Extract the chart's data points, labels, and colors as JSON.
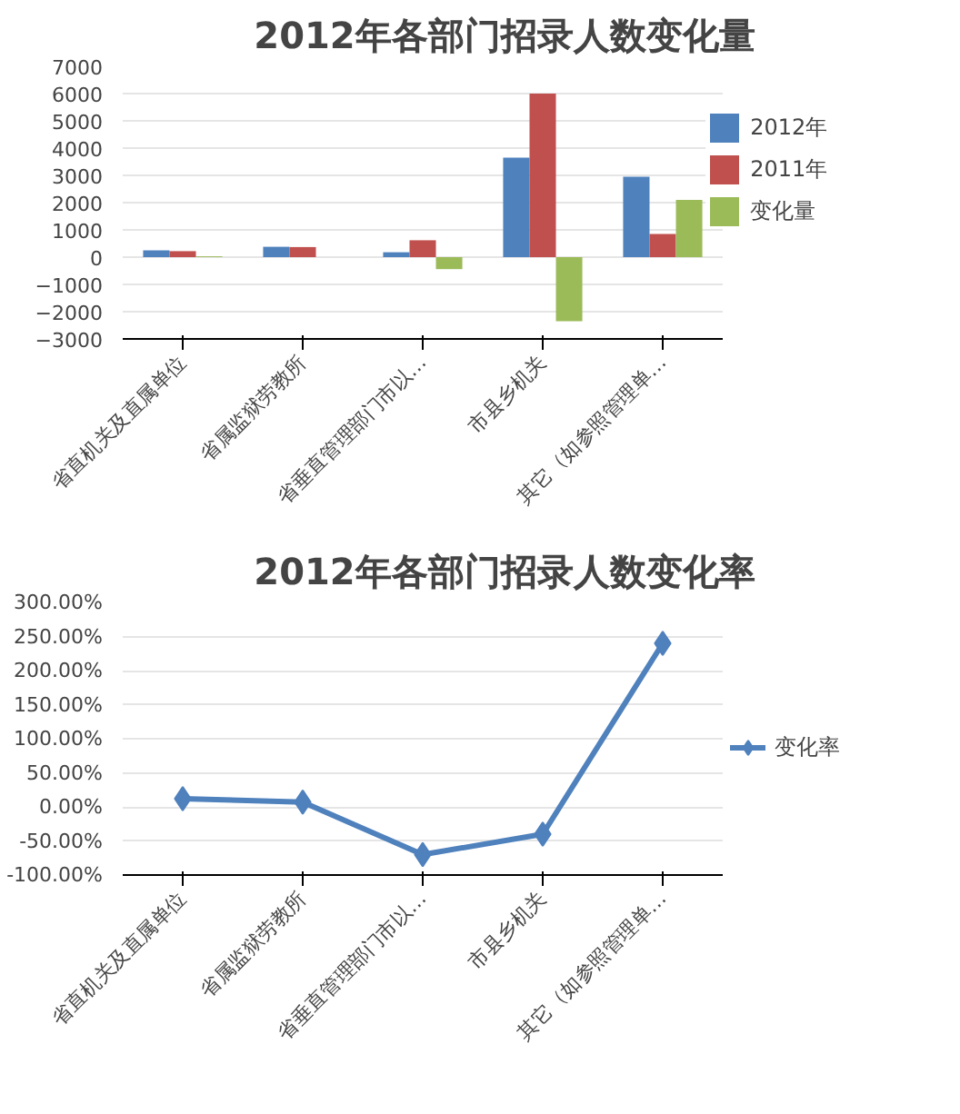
{
  "chart_data": [
    {
      "type": "bar",
      "title": "2012年各部门招录人数变化量",
      "categories": [
        "省直机关及直属单位",
        "省属监狱劳教所",
        "省垂直管理部门市以…",
        "市县乡机关",
        "其它（如参照管理单…"
      ],
      "series": [
        {
          "name": "2012年",
          "color": "#4f81bd",
          "values": [
            250,
            380,
            180,
            3650,
            2950
          ]
        },
        {
          "name": "2011年",
          "color": "#c0504d",
          "values": [
            220,
            370,
            620,
            6000,
            850
          ]
        },
        {
          "name": "变化量",
          "color": "#9bbb59",
          "values": [
            30,
            null,
            -440,
            -2350,
            2100
          ]
        }
      ],
      "ylim": [
        -3000,
        7000
      ],
      "yticks": [
        -3000,
        -2000,
        -1000,
        0,
        1000,
        2000,
        3000,
        4000,
        5000,
        6000,
        7000
      ],
      "grid": "y",
      "legend": "right"
    },
    {
      "type": "line",
      "title": "2012年各部门招录人数变化率",
      "categories": [
        "省直机关及直属单位",
        "省属监狱劳教所",
        "省垂直管理部门市以…",
        "市县乡机关",
        "其它（如参照管理单…"
      ],
      "series": [
        {
          "name": "变化率",
          "color": "#4f81bd",
          "values": [
            12,
            7,
            -70,
            -40,
            240
          ]
        }
      ],
      "ylim": [
        -100,
        300
      ],
      "yticks": [
        {
          "value": -100,
          "label": "-100.00%"
        },
        {
          "value": -50,
          "label": "-50.00%"
        },
        {
          "value": 0,
          "label": "0.00%"
        },
        {
          "value": 50,
          "label": "50.00%"
        },
        {
          "value": 100,
          "label": "100.00%"
        },
        {
          "value": 150,
          "label": "150.00%"
        },
        {
          "value": 200,
          "label": "200.00%"
        },
        {
          "value": 250,
          "label": "250.00%"
        },
        {
          "value": 300,
          "label": "300.00%"
        }
      ],
      "grid": "y",
      "legend": "right",
      "marker": "diamond",
      "line_style": "solid"
    }
  ]
}
